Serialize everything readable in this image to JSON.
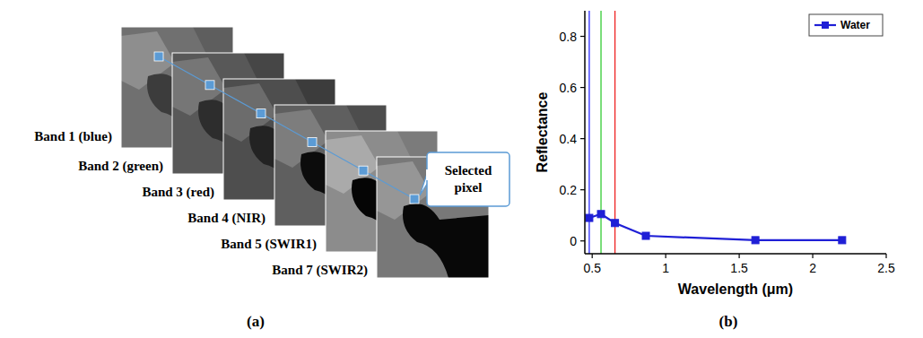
{
  "panels": {
    "a": "(a)",
    "b": "(b)"
  },
  "diagram": {
    "bands": [
      "Band 1 (blue)",
      "Band 2 (green)",
      "Band 3 (red)",
      "Band 4 (NIR)",
      "Band 5 (SWIR1)",
      "Band 7 (SWIR2)"
    ],
    "callout": "Selected pixel"
  },
  "chart_data": {
    "type": "line",
    "xlabel": "Wavelength (μm)",
    "ylabel": "Reflectance",
    "xlim": [
      0.45,
      2.5
    ],
    "xticks": [
      0.5,
      1,
      1.5,
      2,
      2.5
    ],
    "ylim": [
      -0.05,
      0.9
    ],
    "yticks": [
      0,
      0.2,
      0.4,
      0.6,
      0.8
    ],
    "x": [
      0.48,
      0.56,
      0.655,
      0.865,
      1.61,
      2.2
    ],
    "series": [
      {
        "name": "Water",
        "color": "#1f1fd6",
        "marker": "square",
        "values": [
          0.09,
          0.105,
          0.07,
          0.02,
          0.003,
          0.003
        ]
      }
    ],
    "vlines": [
      {
        "x": 0.48,
        "color": "#2b2bff"
      },
      {
        "x": 0.56,
        "color": "#33cc33"
      },
      {
        "x": 0.655,
        "color": "#ee2222"
      }
    ],
    "legend": "upper right",
    "grid": false
  }
}
